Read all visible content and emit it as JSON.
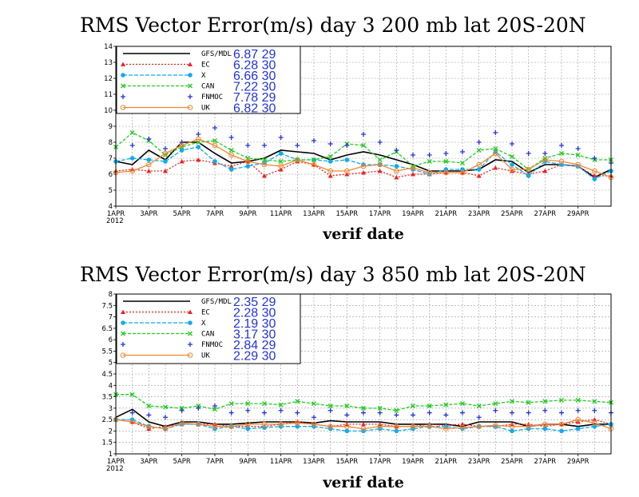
{
  "chart_data": [
    {
      "type": "line",
      "title": "RMS Vector Error(m/s) day 3  200 mb   lat 20S-20N",
      "xlabel": "verif date",
      "ylim": [
        4,
        14
      ],
      "yticks": [
        "4",
        "5",
        "6",
        "7",
        "8",
        "9",
        "10",
        "11",
        "12",
        "13",
        "14"
      ],
      "xticks": [
        "1APR",
        "3APR",
        "5APR",
        "7APR",
        "9APR",
        "11APR",
        "13APR",
        "15APR",
        "17APR",
        "19APR",
        "21APR",
        "23APR",
        "25APR",
        "27APR",
        "29APR"
      ],
      "xtick_sub": "2012",
      "grid": true,
      "legend_position": "top-left",
      "series": [
        {
          "name": "GFS/MDL",
          "stat": "6.87 29",
          "color": "#000000",
          "dash": "",
          "marker": "none",
          "values": [
            6.8,
            6.6,
            7.5,
            6.9,
            8.0,
            8.0,
            7.3,
            6.7,
            6.8,
            7.0,
            7.5,
            7.4,
            7.3,
            6.9,
            7.2,
            7.4,
            7.2,
            6.9,
            6.6,
            6.2,
            6.2,
            6.2,
            6.3,
            6.9,
            6.8,
            6.1,
            6.6,
            6.6,
            6.5,
            5.8,
            6.3
          ]
        },
        {
          "name": "EC",
          "stat": "6.28 30",
          "color": "#ee2222",
          "dash": "2,2",
          "marker": "triangle",
          "values": [
            6.2,
            6.3,
            6.2,
            6.2,
            6.8,
            6.9,
            6.7,
            6.5,
            6.8,
            5.9,
            6.3,
            6.8,
            6.6,
            5.9,
            6.0,
            6.1,
            6.2,
            5.8,
            6.0,
            6.0,
            6.1,
            6.1,
            5.9,
            6.4,
            6.2,
            6.0,
            6.2,
            6.6,
            6.5,
            5.9,
            5.9
          ]
        },
        {
          "name": "X",
          "stat": "6.66 30",
          "color": "#11aaee",
          "dash": "5,2",
          "marker": "circle",
          "values": [
            6.8,
            7.0,
            6.9,
            6.8,
            7.5,
            7.7,
            6.8,
            6.3,
            6.5,
            6.7,
            7.3,
            6.9,
            6.9,
            6.8,
            6.9,
            6.6,
            6.6,
            6.5,
            6.3,
            6.0,
            6.3,
            6.3,
            6.3,
            7.4,
            6.6,
            5.9,
            6.8,
            6.6,
            6.5,
            5.7,
            6.2
          ]
        },
        {
          "name": "CAN",
          "stat": "7.22 30",
          "color": "#22cc22",
          "dash": "4,2",
          "marker": "x",
          "values": [
            7.7,
            8.6,
            8.1,
            7.2,
            7.7,
            8.0,
            8.1,
            7.5,
            7.0,
            6.9,
            6.8,
            6.9,
            6.9,
            7.1,
            7.9,
            7.8,
            6.9,
            7.4,
            6.5,
            6.8,
            6.8,
            6.7,
            7.5,
            7.6,
            7.1,
            6.3,
            7.0,
            7.3,
            7.2,
            6.9,
            6.9
          ]
        },
        {
          "name": "FNMOC",
          "stat": "7.78 29",
          "color": "#2233dd",
          "dash": "",
          "marker": "plus",
          "values": [
            null,
            7.8,
            8.2,
            7.6,
            8.0,
            8.5,
            8.9,
            8.3,
            7.8,
            7.8,
            8.3,
            7.8,
            8.1,
            7.9,
            7.8,
            8.5,
            8.0,
            7.5,
            7.2,
            7.2,
            7.3,
            7.4,
            8.0,
            8.6,
            7.9,
            7.3,
            7.3,
            7.8,
            7.6,
            7.0,
            6.7
          ]
        },
        {
          "name": "UK",
          "stat": "6.82 30",
          "color": "#ee8833",
          "dash": "",
          "marker": "circle-open",
          "values": [
            6.1,
            6.2,
            6.6,
            7.3,
            7.8,
            8.2,
            7.8,
            7.2,
            6.8,
            6.6,
            6.5,
            6.9,
            6.6,
            6.2,
            6.2,
            6.5,
            6.6,
            6.2,
            6.4,
            6.1,
            6.1,
            6.1,
            6.6,
            7.3,
            6.3,
            6.3,
            6.9,
            6.8,
            6.6,
            6.2,
            5.8
          ]
        }
      ]
    },
    {
      "type": "line",
      "title": "RMS Vector Error(m/s) day 3  850 mb   lat 20S-20N",
      "xlabel": "verif date",
      "ylim": [
        1,
        8
      ],
      "yticks": [
        "1",
        "1.5",
        "2",
        "2.5",
        "3",
        "3.5",
        "4",
        "4.5",
        "5",
        "5.5",
        "6",
        "6.5",
        "7",
        "7.5",
        "8"
      ],
      "xticks": [
        "1APR",
        "3APR",
        "5APR",
        "7APR",
        "9APR",
        "11APR",
        "13APR",
        "15APR",
        "17APR",
        "19APR",
        "21APR",
        "23APR",
        "25APR",
        "27APR",
        "29APR"
      ],
      "xtick_sub": "2012",
      "grid": true,
      "legend_position": "top-left",
      "series": [
        {
          "name": "GFS/MDL",
          "stat": "2.35 29",
          "color": "#000000",
          "dash": "",
          "marker": "none",
          "values": [
            2.6,
            2.95,
            2.4,
            2.2,
            2.4,
            2.4,
            2.3,
            2.3,
            2.35,
            2.4,
            2.4,
            2.4,
            2.35,
            2.45,
            2.4,
            2.4,
            2.4,
            2.3,
            2.3,
            2.3,
            2.3,
            2.2,
            2.4,
            2.4,
            2.4,
            2.2,
            2.3,
            2.3,
            2.2,
            2.3,
            2.3
          ]
        },
        {
          "name": "EC",
          "stat": "2.28 30",
          "color": "#ee2222",
          "dash": "2,2",
          "marker": "triangle",
          "values": [
            2.5,
            2.4,
            2.1,
            2.2,
            2.3,
            2.3,
            2.3,
            2.2,
            2.2,
            2.2,
            2.3,
            2.4,
            2.3,
            2.2,
            2.3,
            2.3,
            2.3,
            2.2,
            2.2,
            2.3,
            2.25,
            2.3,
            2.2,
            2.2,
            2.3,
            2.3,
            2.2,
            2.3,
            2.4,
            2.5,
            2.3
          ]
        },
        {
          "name": "X",
          "stat": "2.19 30",
          "color": "#11aaee",
          "dash": "5,2",
          "marker": "circle",
          "values": [
            2.5,
            2.5,
            2.2,
            2.1,
            2.3,
            2.3,
            2.1,
            2.2,
            2.1,
            2.15,
            2.2,
            2.2,
            2.2,
            2.1,
            2.0,
            2.0,
            2.1,
            2.0,
            2.1,
            2.2,
            2.2,
            2.1,
            2.2,
            2.2,
            2.0,
            2.1,
            2.1,
            2.0,
            2.1,
            2.2,
            2.3
          ]
        },
        {
          "name": "CAN",
          "stat": "3.17 30",
          "color": "#22cc22",
          "dash": "4,2",
          "marker": "x",
          "values": [
            3.6,
            3.6,
            3.1,
            3.05,
            3.0,
            3.1,
            2.95,
            3.2,
            3.2,
            3.2,
            3.15,
            3.3,
            3.2,
            3.1,
            3.1,
            3.0,
            3.0,
            2.9,
            3.1,
            3.1,
            3.15,
            3.2,
            3.1,
            3.2,
            3.3,
            3.25,
            3.3,
            3.35,
            3.35,
            3.3,
            3.25
          ]
        },
        {
          "name": "FNMOC",
          "stat": "2.84 29",
          "color": "#2233dd",
          "dash": "",
          "marker": "plus",
          "values": [
            null,
            2.8,
            2.7,
            2.6,
            2.9,
            3.0,
            3.1,
            2.8,
            2.9,
            2.8,
            2.9,
            2.8,
            2.6,
            2.9,
            2.7,
            2.8,
            2.8,
            2.7,
            2.7,
            2.8,
            2.7,
            2.8,
            2.6,
            2.9,
            2.8,
            2.8,
            2.9,
            2.8,
            2.9,
            2.9,
            2.8
          ]
        },
        {
          "name": "UK",
          "stat": "2.29 30",
          "color": "#ee8833",
          "dash": "",
          "marker": "circle-open",
          "values": [
            2.5,
            2.4,
            2.2,
            2.1,
            2.35,
            2.3,
            2.2,
            2.2,
            2.3,
            2.3,
            2.3,
            2.35,
            2.3,
            2.2,
            2.2,
            2.1,
            2.2,
            2.2,
            2.2,
            2.2,
            2.1,
            2.15,
            2.2,
            2.25,
            2.2,
            2.2,
            2.3,
            2.3,
            2.5,
            2.35,
            2.1
          ]
        }
      ]
    }
  ]
}
